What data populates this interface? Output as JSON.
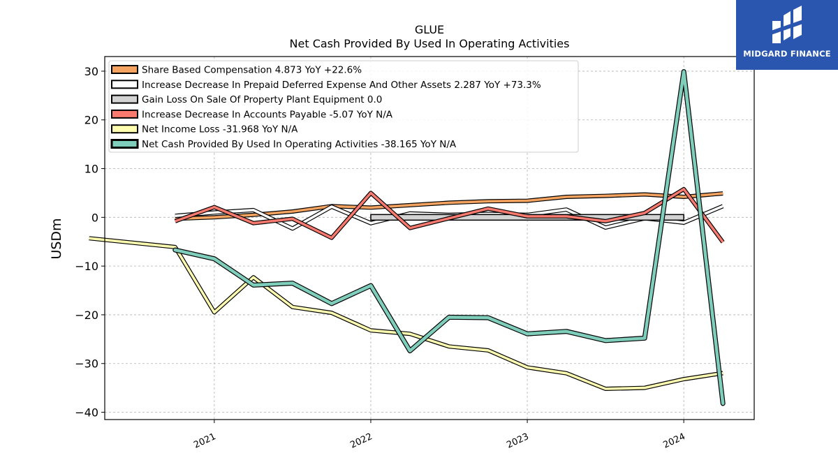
{
  "chart_data": {
    "type": "line",
    "title": "GLUE",
    "subtitle": "Net Cash Provided By Used In Operating Activities",
    "ylabel": "USDm",
    "xlabel": "",
    "ylim": [
      -41.5,
      33
    ],
    "xlim": [
      2020.3,
      2024.45
    ],
    "yticks": [
      30,
      20,
      10,
      0,
      -10,
      -20,
      -30,
      -40
    ],
    "ytick_labels": [
      "30",
      "20",
      "10",
      "0",
      "−10",
      "−20",
      "−30",
      "−40"
    ],
    "xticks": [
      2021,
      2022,
      2023,
      2024
    ],
    "xtick_labels": [
      "2021",
      "2022",
      "2023",
      "2024"
    ],
    "grid": true,
    "legend_placement": "top-left",
    "series": [
      {
        "name": "Share Based Compensation",
        "legend": "Share Based Compensation  4.873 YoY +22.6%",
        "color": "#f4a460",
        "kind": "band",
        "x": [
          2020.75,
          2021.0,
          2021.25,
          2021.5,
          2021.75,
          2022.0,
          2022.25,
          2022.5,
          2022.75,
          2023.0,
          2023.25,
          2023.5,
          2023.75,
          2024.0,
          2024.25
        ],
        "values": [
          -0.3,
          0.0,
          0.5,
          1.2,
          2.3,
          2.0,
          2.5,
          3.0,
          3.3,
          3.4,
          4.2,
          4.4,
          4.7,
          4.2,
          4.9
        ]
      },
      {
        "name": "Increase Decrease In Prepaid Deferred Expense And Other Assets",
        "legend": "Increase Decrease In Prepaid Deferred Expense And Other Assets  2.287 YoY +73.3%",
        "color": "#ffffff",
        "kind": "band",
        "x": [
          2020.75,
          2021.0,
          2021.25,
          2021.5,
          2021.75,
          2022.0,
          2022.25,
          2022.5,
          2022.75,
          2023.0,
          2023.25,
          2023.5,
          2023.75,
          2024.0,
          2024.25
        ],
        "values": [
          0.3,
          1.0,
          1.5,
          -2.3,
          2.2,
          -1.2,
          0.8,
          0.5,
          0.7,
          0.5,
          1.6,
          -2.1,
          -0.2,
          -1.1,
          2.3
        ]
      },
      {
        "name": "Gain Loss On Sale Of Property Plant Equipment",
        "legend": "Gain Loss On Sale Of Property Plant Equipment  0.0",
        "color": "#d3d3d3",
        "kind": "rect",
        "x": [
          2022.0,
          2024.0
        ],
        "values": [
          0.0,
          0.0
        ]
      },
      {
        "name": "Increase Decrease In Accounts Payable",
        "legend": "Increase Decrease In Accounts Payable  -5.07 YoY N/A",
        "color": "#f87a6e",
        "kind": "band",
        "x": [
          2020.75,
          2021.0,
          2021.25,
          2021.5,
          2021.75,
          2022.0,
          2022.25,
          2022.5,
          2022.75,
          2023.0,
          2023.25,
          2023.5,
          2023.75,
          2024.0,
          2024.25
        ],
        "values": [
          -0.8,
          2.1,
          -1.2,
          -0.3,
          -4.2,
          5.0,
          -2.2,
          -0.2,
          1.8,
          0.2,
          0.2,
          -0.8,
          0.9,
          5.8,
          -5.1
        ]
      },
      {
        "name": "Net Income Loss",
        "legend": "Net Income Loss  -31.968 YoY N/A",
        "color": "#fffdb0",
        "kind": "band",
        "x": [
          2020.2,
          2020.75,
          2021.0,
          2021.25,
          2021.5,
          2021.75,
          2022.0,
          2022.25,
          2022.5,
          2022.75,
          2023.0,
          2023.25,
          2023.5,
          2023.75,
          2024.0,
          2024.25
        ],
        "values": [
          -4.3,
          -6.1,
          -19.5,
          -12.3,
          -18.4,
          -19.6,
          -23.2,
          -23.9,
          -26.5,
          -27.3,
          -30.8,
          -32.0,
          -35.2,
          -35.0,
          -33.2,
          -31.97
        ]
      },
      {
        "name": "Net Cash Provided By Used In Operating Activities",
        "legend": "Net Cash Provided By Used In Operating Activities  -38.165 YoY N/A",
        "color": "#7fcdbb",
        "kind": "line",
        "x": [
          2020.75,
          2021.0,
          2021.25,
          2021.5,
          2021.75,
          2022.0,
          2022.25,
          2022.5,
          2022.75,
          2023.0,
          2023.25,
          2023.5,
          2023.75,
          2024.0,
          2024.25
        ],
        "values": [
          -6.7,
          -8.5,
          -13.9,
          -13.5,
          -17.7,
          -14.0,
          -27.4,
          -20.5,
          -20.6,
          -23.9,
          -23.4,
          -25.3,
          -24.8,
          29.9,
          -38.2
        ]
      }
    ]
  },
  "logo": {
    "text": "MIDGARD FINANCE"
  }
}
